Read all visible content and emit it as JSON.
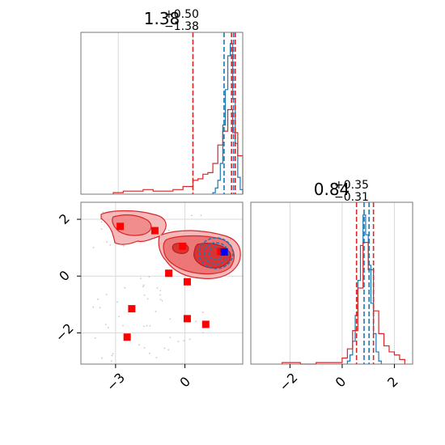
{
  "chart_data": [
    {
      "type": "histogram",
      "panel": "top-left",
      "title": {
        "value": "1.38",
        "plus": "+0.50",
        "minus": "−1.38"
      },
      "xlim": [
        -4.5,
        2.0
      ],
      "grid": true,
      "vlines": {
        "red": [
          0.0,
          1.55,
          1.7
        ],
        "blue": [
          1.25,
          1.63
        ]
      },
      "series": [
        {
          "color": "#1f77b4",
          "bins_x": [
            0.8,
            0.9,
            1.0,
            1.1,
            1.2,
            1.3,
            1.4,
            1.5,
            1.6,
            1.7,
            1.8,
            1.9,
            2.0
          ],
          "heights": [
            0.01,
            0.04,
            0.09,
            0.2,
            0.45,
            0.68,
            0.9,
            0.98,
            0.62,
            0.33,
            0.11,
            0.03,
            0.0
          ]
        },
        {
          "color": "#d62728",
          "bins_x": [
            -3.2,
            -2.8,
            -2.4,
            -2.0,
            -1.6,
            -1.2,
            -0.8,
            -0.4,
            0.0,
            0.2,
            0.4,
            0.6,
            0.8,
            1.0,
            1.2,
            1.4,
            1.6,
            1.8,
            2.0
          ],
          "heights": [
            0.01,
            0.02,
            0.02,
            0.03,
            0.02,
            0.02,
            0.03,
            0.05,
            0.09,
            0.1,
            0.13,
            0.14,
            0.2,
            0.32,
            0.41,
            0.55,
            0.4,
            0.25,
            0.0
          ]
        }
      ]
    },
    {
      "type": "contour",
      "panel": "bottom-left",
      "xlim": [
        -4.5,
        2.5
      ],
      "ylim": [
        -3.1,
        2.6
      ],
      "xticks": [
        "−3",
        "0"
      ],
      "xtick_values": [
        -3,
        0
      ],
      "yticks": [
        "−2",
        "0",
        "2"
      ],
      "ytick_values": [
        -2,
        0,
        2
      ],
      "grid": true,
      "markers": {
        "red": [
          [
            -2.8,
            1.75
          ],
          [
            -1.3,
            1.6
          ],
          [
            -0.1,
            1.05
          ],
          [
            -0.7,
            0.1
          ],
          [
            0.1,
            -0.2
          ],
          [
            -2.3,
            -1.15
          ],
          [
            0.1,
            -1.5
          ],
          [
            0.9,
            -1.7
          ],
          [
            -2.5,
            -2.15
          ]
        ],
        "blue": [
          [
            1.7,
            0.85
          ]
        ],
        "red_center": [
          1.6,
          0.85
        ]
      }
    },
    {
      "type": "histogram",
      "panel": "bottom-right",
      "title": {
        "value": "0.84",
        "plus": "+0.35",
        "minus": "−0.31"
      },
      "xlim": [
        -3.5,
        2.7
      ],
      "xticks": [
        "−2",
        "0",
        "2"
      ],
      "xtick_values": [
        -2,
        0,
        2
      ],
      "grid": true,
      "vlines": {
        "red": [
          0.55,
          1.2
        ],
        "blue": [
          0.84,
          1.03
        ]
      },
      "series": [
        {
          "color": "#1f77b4",
          "bins_x": [
            0.2,
            0.3,
            0.4,
            0.5,
            0.6,
            0.7,
            0.8,
            0.9,
            1.0,
            1.1,
            1.2,
            1.3,
            1.4,
            1.5
          ],
          "heights": [
            0.02,
            0.06,
            0.15,
            0.32,
            0.55,
            0.78,
            0.98,
            0.85,
            0.65,
            0.4,
            0.2,
            0.08,
            0.02,
            0.0
          ]
        },
        {
          "color": "#d62728",
          "bins_x": [
            -2.3,
            -1.6,
            -1.0,
            0.0,
            0.2,
            0.4,
            0.6,
            0.8,
            1.0,
            1.2,
            1.4,
            1.6,
            1.8,
            2.0,
            2.2,
            2.4
          ],
          "heights": [
            0.01,
            0.0,
            0.01,
            0.04,
            0.1,
            0.22,
            0.5,
            0.8,
            0.62,
            0.35,
            0.2,
            0.12,
            0.08,
            0.06,
            0.03,
            0.0
          ]
        }
      ]
    }
  ]
}
